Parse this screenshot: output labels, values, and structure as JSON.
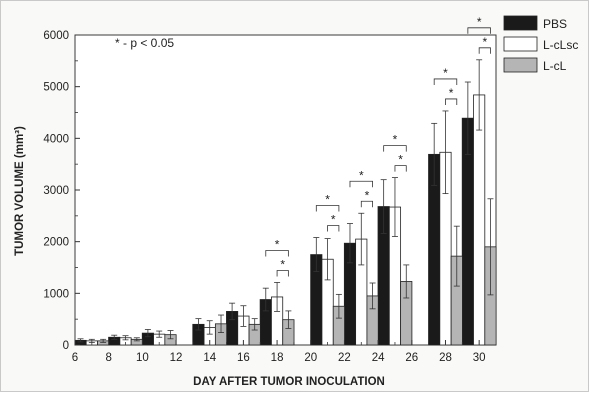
{
  "chart_data": {
    "type": "bar",
    "xlabel": "DAY AFTER TUMOR INOCULATION",
    "ylabel": "TUMOR VOLUME (mm³)",
    "xlim": [
      6,
      31
    ],
    "ylim": [
      0,
      6000
    ],
    "xticks": [
      "6",
      "8",
      "10",
      "12",
      "14",
      "16",
      "18",
      "20",
      "22",
      "24",
      "26",
      "28",
      "30"
    ],
    "yticks": [
      "0",
      "1000",
      "2000",
      "3000",
      "4000",
      "5000",
      "6000"
    ],
    "annotation": "* - p < 0.05",
    "legend_position": "top-right",
    "grid": false,
    "x": [
      7,
      9,
      11,
      14,
      16,
      18,
      21,
      23,
      25,
      28,
      30
    ],
    "series": [
      {
        "name": "PBS",
        "color": "#1a1a1a",
        "values": [
          90,
          150,
          230,
          400,
          650,
          880,
          1750,
          1970,
          2680,
          3690,
          4390
        ],
        "errors": [
          30,
          40,
          70,
          110,
          160,
          220,
          330,
          380,
          520,
          600,
          700
        ]
      },
      {
        "name": "L-cLsc",
        "color": "#ffffff",
        "values": [
          80,
          140,
          210,
          340,
          560,
          930,
          1660,
          2050,
          2670,
          3730,
          4840
        ],
        "errors": [
          30,
          40,
          60,
          130,
          200,
          280,
          400,
          500,
          570,
          800,
          680
        ]
      },
      {
        "name": "L-cL",
        "color": "#b5b5b5",
        "values": [
          80,
          110,
          200,
          410,
          400,
          490,
          750,
          950,
          1230,
          1720,
          1900
        ],
        "errors": [
          30,
          30,
          80,
          170,
          110,
          170,
          230,
          250,
          320,
          580,
          930
        ]
      }
    ],
    "significance_markers": [
      {
        "x": 18,
        "label": "*"
      },
      {
        "x": 21,
        "label": "*"
      },
      {
        "x": 23,
        "label": "*"
      },
      {
        "x": 25,
        "label": "*"
      },
      {
        "x": 28,
        "label": "*"
      },
      {
        "x": 30,
        "label": "*"
      }
    ]
  }
}
